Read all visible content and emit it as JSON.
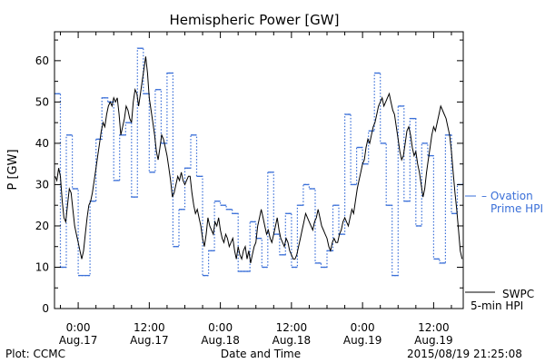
{
  "chart_data": {
    "type": "line",
    "title": "Hemispheric Power [GW]",
    "ylabel": "P [GW]",
    "xlabel": "Date and Time",
    "footer_left": "Plot: CCMC",
    "footer_right": "2015/08/19 21:25:08",
    "xlim_hours": [
      -4,
      65
    ],
    "ylim": [
      0,
      67
    ],
    "yticks": [
      0,
      10,
      20,
      30,
      40,
      50,
      60
    ],
    "xticks": [
      {
        "hour": 0,
        "time": "0:00",
        "date": "Aug.17"
      },
      {
        "hour": 12,
        "time": "12:00",
        "date": "Aug.17"
      },
      {
        "hour": 24,
        "time": "0:00",
        "date": "Aug.18"
      },
      {
        "hour": 36,
        "time": "12:00",
        "date": "Aug.18"
      },
      {
        "hour": 48,
        "time": "0:00",
        "date": "Aug.19"
      },
      {
        "hour": 60,
        "time": "12:00",
        "date": "Aug.19"
      }
    ],
    "colors": {
      "swpc": "#000000",
      "ovation": "#3a6fd8"
    },
    "series": [
      {
        "name": "SWPC 5-min HPI",
        "legend_lines": [
          "SWPC",
          "5-min HPI"
        ],
        "style": "solid",
        "points": [
          [
            -3.9,
            32
          ],
          [
            -3.6,
            31
          ],
          [
            -3.3,
            34
          ],
          [
            -3.0,
            32
          ],
          [
            -2.7,
            26
          ],
          [
            -2.4,
            22
          ],
          [
            -2.1,
            21
          ],
          [
            -1.8,
            25
          ],
          [
            -1.5,
            29
          ],
          [
            -1.2,
            28
          ],
          [
            -0.9,
            24
          ],
          [
            -0.6,
            20
          ],
          [
            -0.3,
            18
          ],
          [
            0.0,
            16
          ],
          [
            0.3,
            14
          ],
          [
            0.6,
            12
          ],
          [
            0.9,
            14
          ],
          [
            1.2,
            18
          ],
          [
            1.5,
            22
          ],
          [
            1.8,
            25
          ],
          [
            2.1,
            26
          ],
          [
            2.4,
            28
          ],
          [
            2.7,
            31
          ],
          [
            3.0,
            34
          ],
          [
            3.3,
            37
          ],
          [
            3.6,
            40
          ],
          [
            3.9,
            43
          ],
          [
            4.2,
            45
          ],
          [
            4.5,
            44
          ],
          [
            4.8,
            47
          ],
          [
            5.1,
            49
          ],
          [
            5.4,
            50
          ],
          [
            5.7,
            49
          ],
          [
            6.0,
            51
          ],
          [
            6.3,
            50
          ],
          [
            6.6,
            51
          ],
          [
            6.9,
            47
          ],
          [
            7.2,
            42
          ],
          [
            7.5,
            44
          ],
          [
            7.8,
            46
          ],
          [
            8.1,
            49
          ],
          [
            8.4,
            48
          ],
          [
            8.7,
            46
          ],
          [
            9.0,
            45
          ],
          [
            9.3,
            50
          ],
          [
            9.6,
            53
          ],
          [
            9.9,
            52
          ],
          [
            10.2,
            49
          ],
          [
            10.5,
            52
          ],
          [
            10.8,
            55
          ],
          [
            11.1,
            58
          ],
          [
            11.4,
            61
          ],
          [
            11.7,
            57
          ],
          [
            12.0,
            51
          ],
          [
            12.3,
            48
          ],
          [
            12.6,
            45
          ],
          [
            12.9,
            42
          ],
          [
            13.2,
            38
          ],
          [
            13.5,
            36
          ],
          [
            13.8,
            39
          ],
          [
            14.1,
            42
          ],
          [
            14.4,
            41
          ],
          [
            14.7,
            39
          ],
          [
            15.0,
            37
          ],
          [
            15.3,
            34
          ],
          [
            15.6,
            31
          ],
          [
            15.9,
            27
          ],
          [
            16.2,
            28
          ],
          [
            16.5,
            30
          ],
          [
            16.8,
            32
          ],
          [
            17.1,
            31
          ],
          [
            17.4,
            33
          ],
          [
            17.7,
            31
          ],
          [
            18.0,
            30
          ],
          [
            18.3,
            31
          ],
          [
            18.6,
            32
          ],
          [
            18.9,
            32
          ],
          [
            19.2,
            28
          ],
          [
            19.5,
            25
          ],
          [
            19.8,
            23
          ],
          [
            20.1,
            24
          ],
          [
            20.4,
            22
          ],
          [
            20.7,
            20
          ],
          [
            21.0,
            17
          ],
          [
            21.3,
            15
          ],
          [
            21.6,
            18
          ],
          [
            21.9,
            22
          ],
          [
            22.2,
            20
          ],
          [
            22.5,
            19
          ],
          [
            22.8,
            18
          ],
          [
            23.1,
            21
          ],
          [
            23.4,
            20
          ],
          [
            23.7,
            22
          ],
          [
            24.0,
            19
          ],
          [
            24.3,
            17
          ],
          [
            24.6,
            16
          ],
          [
            24.9,
            18
          ],
          [
            25.2,
            17
          ],
          [
            25.5,
            15
          ],
          [
            25.8,
            16
          ],
          [
            26.1,
            17
          ],
          [
            26.4,
            14
          ],
          [
            26.7,
            12
          ],
          [
            27.0,
            15
          ],
          [
            27.3,
            13
          ],
          [
            27.6,
            12
          ],
          [
            27.9,
            14
          ],
          [
            28.2,
            15
          ],
          [
            28.5,
            12
          ],
          [
            28.8,
            14
          ],
          [
            29.1,
            11
          ],
          [
            29.4,
            13
          ],
          [
            29.7,
            15
          ],
          [
            30.0,
            16
          ],
          [
            30.3,
            20
          ],
          [
            30.6,
            22
          ],
          [
            30.9,
            24
          ],
          [
            31.2,
            22
          ],
          [
            31.5,
            20
          ],
          [
            31.8,
            18
          ],
          [
            32.1,
            19
          ],
          [
            32.4,
            17
          ],
          [
            32.7,
            16
          ],
          [
            33.0,
            18
          ],
          [
            33.3,
            20
          ],
          [
            33.6,
            22
          ],
          [
            33.9,
            19
          ],
          [
            34.2,
            17
          ],
          [
            34.5,
            16
          ],
          [
            34.8,
            15
          ],
          [
            35.1,
            17
          ],
          [
            35.4,
            16
          ],
          [
            35.7,
            14
          ],
          [
            36.0,
            13
          ],
          [
            36.3,
            12
          ],
          [
            36.6,
            12
          ],
          [
            36.9,
            13
          ],
          [
            37.2,
            15
          ],
          [
            37.5,
            17
          ],
          [
            37.8,
            19
          ],
          [
            38.1,
            21
          ],
          [
            38.4,
            23
          ],
          [
            38.7,
            22
          ],
          [
            39.0,
            21
          ],
          [
            39.3,
            20
          ],
          [
            39.6,
            19
          ],
          [
            39.9,
            21
          ],
          [
            40.2,
            22
          ],
          [
            40.5,
            24
          ],
          [
            40.8,
            22
          ],
          [
            41.1,
            20
          ],
          [
            41.4,
            19
          ],
          [
            41.7,
            18
          ],
          [
            42.0,
            17
          ],
          [
            42.3,
            15
          ],
          [
            42.6,
            14
          ],
          [
            42.9,
            16
          ],
          [
            43.2,
            17
          ],
          [
            43.5,
            16
          ],
          [
            43.8,
            16
          ],
          [
            44.1,
            18
          ],
          [
            44.4,
            19
          ],
          [
            44.7,
            21
          ],
          [
            45.0,
            22
          ],
          [
            45.3,
            21
          ],
          [
            45.6,
            20
          ],
          [
            45.9,
            22
          ],
          [
            46.2,
            24
          ],
          [
            46.5,
            23
          ],
          [
            46.8,
            26
          ],
          [
            47.1,
            29
          ],
          [
            47.4,
            31
          ],
          [
            47.7,
            33
          ],
          [
            48.0,
            35
          ],
          [
            48.3,
            36
          ],
          [
            48.6,
            39
          ],
          [
            48.9,
            41
          ],
          [
            49.2,
            40
          ],
          [
            49.5,
            42
          ],
          [
            49.8,
            44
          ],
          [
            50.1,
            45
          ],
          [
            50.4,
            47
          ],
          [
            50.7,
            49
          ],
          [
            51.0,
            50
          ],
          [
            51.3,
            51
          ],
          [
            51.6,
            49
          ],
          [
            51.9,
            50
          ],
          [
            52.2,
            51
          ],
          [
            52.5,
            52
          ],
          [
            52.8,
            50
          ],
          [
            53.1,
            48
          ],
          [
            53.4,
            47
          ],
          [
            53.7,
            44
          ],
          [
            54.0,
            41
          ],
          [
            54.3,
            38
          ],
          [
            54.6,
            36
          ],
          [
            54.9,
            37
          ],
          [
            55.2,
            40
          ],
          [
            55.5,
            43
          ],
          [
            55.8,
            44
          ],
          [
            56.1,
            42
          ],
          [
            56.4,
            39
          ],
          [
            56.7,
            37
          ],
          [
            57.0,
            38
          ],
          [
            57.3,
            35
          ],
          [
            57.6,
            33
          ],
          [
            57.9,
            30
          ],
          [
            58.2,
            27
          ],
          [
            58.5,
            29
          ],
          [
            58.8,
            33
          ],
          [
            59.1,
            36
          ],
          [
            59.4,
            39
          ],
          [
            59.7,
            42
          ],
          [
            60.0,
            44
          ],
          [
            60.3,
            43
          ],
          [
            60.6,
            45
          ],
          [
            60.9,
            47
          ],
          [
            61.2,
            49
          ],
          [
            61.5,
            48
          ],
          [
            61.8,
            47
          ],
          [
            62.1,
            46
          ],
          [
            62.4,
            44
          ],
          [
            62.7,
            42
          ],
          [
            63.0,
            38
          ],
          [
            63.3,
            33
          ],
          [
            63.6,
            28
          ],
          [
            63.9,
            24
          ],
          [
            64.2,
            19
          ],
          [
            64.5,
            14
          ],
          [
            64.8,
            12
          ]
        ]
      },
      {
        "name": "Ovation Prime HPI",
        "legend_lines": [
          "– Ovation",
          "Prime HPI"
        ],
        "style": "dotted-step",
        "values_start_hour": -4,
        "step_hours": 1,
        "values": [
          52,
          10,
          42,
          29,
          8,
          8,
          26,
          41,
          51,
          50,
          31,
          42,
          45,
          27,
          63,
          52,
          33,
          53,
          40,
          57,
          15,
          24,
          34,
          42,
          32,
          8,
          14,
          26,
          25,
          24,
          23,
          9,
          9,
          21,
          17,
          10,
          33,
          18,
          13,
          23,
          10,
          25,
          30,
          29,
          11,
          10,
          14,
          25,
          18,
          47,
          30,
          39,
          35,
          43,
          57,
          40,
          25,
          8,
          49,
          26,
          46,
          20,
          40,
          37,
          12,
          11,
          42,
          23,
          30
        ]
      }
    ]
  }
}
